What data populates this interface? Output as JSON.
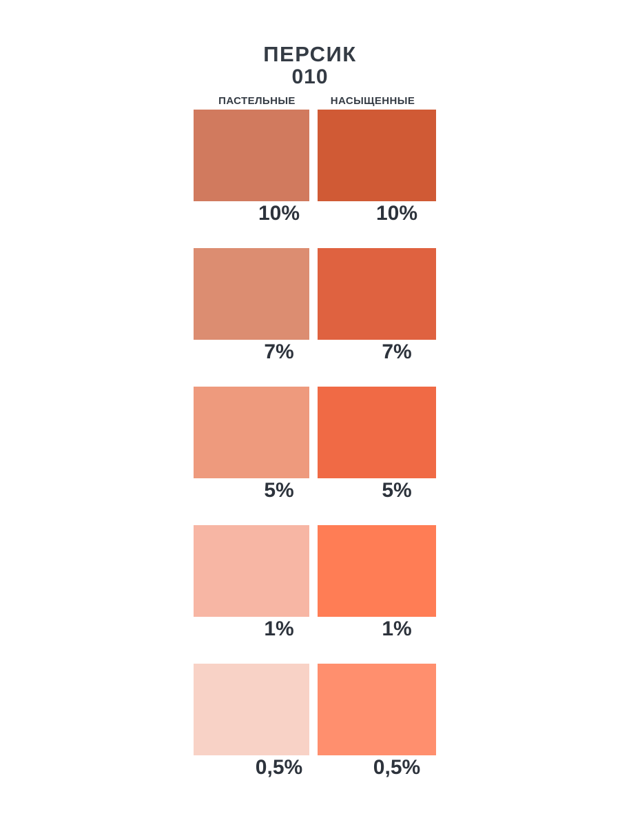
{
  "header": {
    "title": "ПЕРСИК",
    "code": "010"
  },
  "columns": [
    {
      "label": "ПАСТЕЛЬНЫЕ"
    },
    {
      "label": "НАСЫЩЕННЫЕ"
    }
  ],
  "colors": {
    "background": "#ffffff",
    "text": "#343b44"
  },
  "chart_data": {
    "type": "table",
    "title": "ПЕРСИК 010",
    "columns": [
      "ПАСТЕЛЬНЫЕ",
      "НАСЫЩЕННЫЕ"
    ],
    "rows": [
      {
        "percent": "10%",
        "pastel_hex": "#d17a5e",
        "saturated_hex": "#d05a35"
      },
      {
        "percent": "7%",
        "pastel_hex": "#dc8d71",
        "saturated_hex": "#df6240"
      },
      {
        "percent": "5%",
        "pastel_hex": "#ee9a7d",
        "saturated_hex": "#f06a45"
      },
      {
        "percent": "1%",
        "pastel_hex": "#f7b6a4",
        "saturated_hex": "#ff7d55"
      },
      {
        "percent": "0,5%",
        "pastel_hex": "#f8d2c6",
        "saturated_hex": "#ff8f6e"
      }
    ]
  }
}
